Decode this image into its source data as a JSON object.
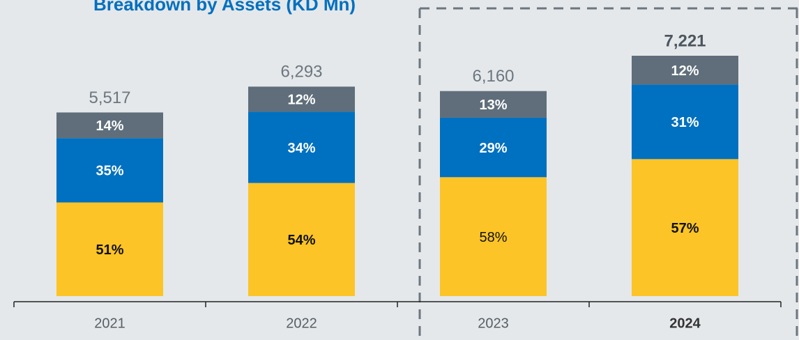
{
  "chart_data": {
    "type": "stacked_bar_percent",
    "title": "Breakdown by Assets (KD Mn)",
    "categories": [
      "2021",
      "2022",
      "2023",
      "2024"
    ],
    "totals": [
      5517,
      6293,
      6160,
      7221
    ],
    "totals_labels": [
      "5,517",
      "6,293",
      "6,160",
      "7,221"
    ],
    "series": [
      {
        "color": "#fcc426",
        "values": [
          51,
          54,
          58,
          57
        ],
        "value_labels": [
          "51%",
          "54%",
          "58%",
          "57%"
        ]
      },
      {
        "color": "#0070c0",
        "values": [
          35,
          34,
          29,
          31
        ],
        "value_labels": [
          "35%",
          "34%",
          "29%",
          "31%"
        ]
      },
      {
        "color": "#5f6e7a",
        "values": [
          14,
          12,
          13,
          12
        ],
        "value_labels": [
          "14%",
          "12%",
          "13%",
          "12%"
        ]
      }
    ]
  }
}
